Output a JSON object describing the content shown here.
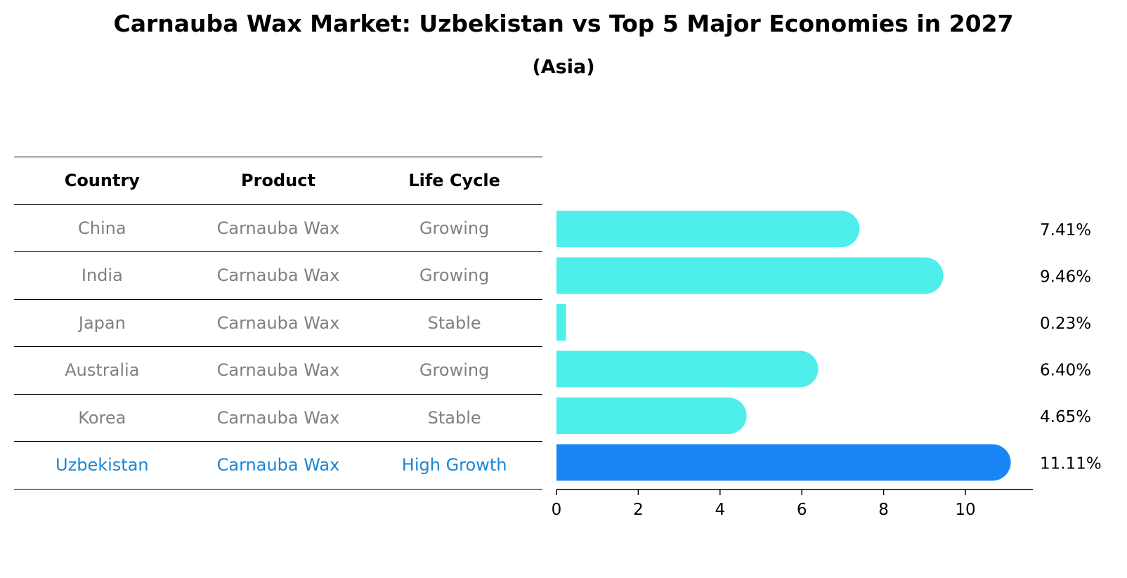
{
  "title": "Carnauba Wax Market: Uzbekistan vs Top 5 Major Economies in 2027",
  "subtitle": "(Asia)",
  "table": {
    "headers": [
      "Country",
      "Product",
      "Life Cycle"
    ],
    "rows": [
      {
        "country": "China",
        "product": "Carnauba Wax",
        "life_cycle": "Growing"
      },
      {
        "country": "India",
        "product": "Carnauba Wax",
        "life_cycle": "Growing"
      },
      {
        "country": "Japan",
        "product": "Carnauba Wax",
        "life_cycle": "Stable"
      },
      {
        "country": "Australia",
        "product": "Carnauba Wax",
        "life_cycle": "Growing"
      },
      {
        "country": "Korea",
        "product": "Carnauba Wax",
        "life_cycle": "Stable"
      },
      {
        "country": "Uzbekistan",
        "product": "Carnauba Wax",
        "life_cycle": "High Growth"
      }
    ]
  },
  "chart_data": {
    "type": "bar",
    "orientation": "horizontal",
    "categories": [
      "China",
      "India",
      "Japan",
      "Australia",
      "Korea",
      "Uzbekistan"
    ],
    "values": [
      7.41,
      9.46,
      0.23,
      6.4,
      4.65,
      11.11
    ],
    "value_labels": [
      "7.41%",
      "9.46%",
      "0.23%",
      "6.40%",
      "4.65%",
      "11.11%"
    ],
    "xlim": [
      0,
      11.65
    ],
    "xticks": [
      0,
      2,
      4,
      6,
      8,
      10
    ],
    "highlight_index": 5,
    "colors": {
      "default": "#4eeeea",
      "highlight": "#1a86f5",
      "text_muted": "#808080",
      "text_highlight": "#1a86d8"
    }
  }
}
